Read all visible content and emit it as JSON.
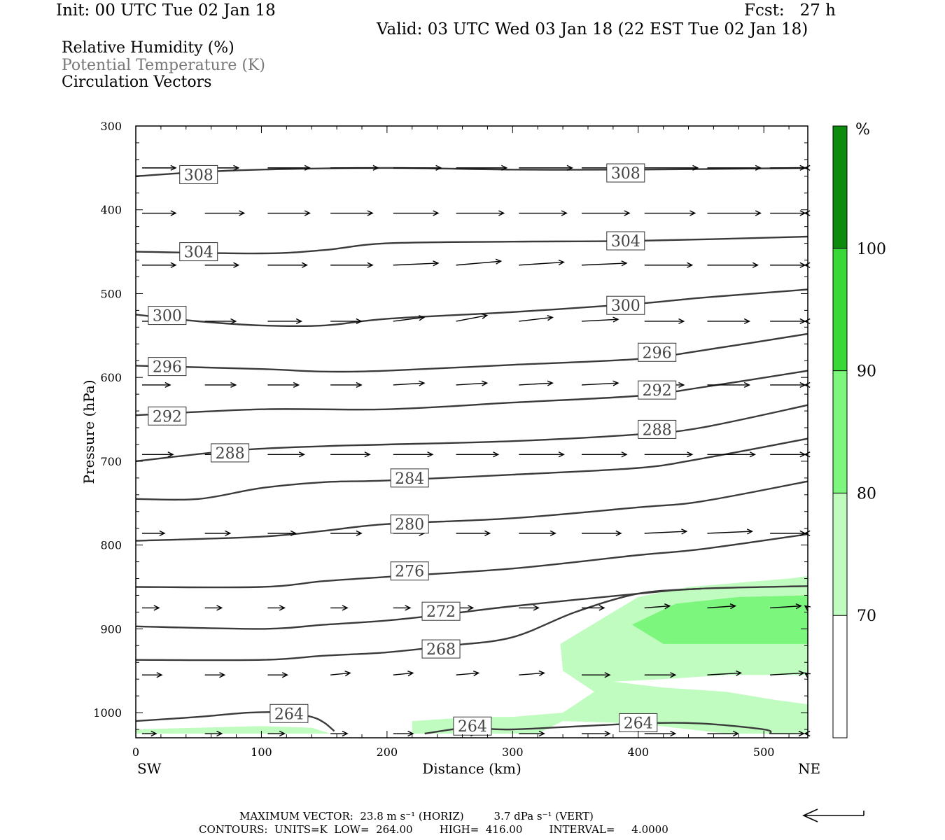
{
  "header": {
    "init": "Init: 00 UTC Tue 02 Jan 18",
    "fcst": "Fcst:   27 h",
    "valid": "Valid: 03 UTC Wed 03 Jan 18 (22 EST Tue 02 Jan 18)"
  },
  "legend": {
    "rh": "Relative Humidity (%)",
    "theta": "Potential Temperature (K)",
    "vectors": "Circulation Vectors"
  },
  "footer": {
    "line1": "MAXIMUM VECTOR:  23.8 m s⁻¹ (HORIZ)         3.7 dPa s⁻¹ (VERT)",
    "line2": "CONTOURS:  UNITS=K  LOW=  264.00        HIGH=  416.00        INTERVAL=     4.0000"
  },
  "colors": {
    "contour": "#3a3a3a",
    "rh70": "#c0fcc0",
    "rh80": "#7cf67c",
    "rh90": "#38d838",
    "rh100": "#0e8a0e",
    "theta_legend": "#777777"
  },
  "chart_data": {
    "type": "contour-cross-section",
    "xlabel": "Distance (km)",
    "ylabel": "Pressure (hPa)",
    "x_left_label": "SW",
    "x_right_label": "NE",
    "xlim": [
      0,
      535
    ],
    "ylim": [
      1030,
      300
    ],
    "x_ticks": [
      0,
      100,
      200,
      300,
      400,
      500
    ],
    "y_ticks": [
      300,
      400,
      500,
      600,
      700,
      800,
      900,
      1000
    ],
    "colorbar": {
      "unit": "%",
      "levels": [
        70,
        80,
        90,
        100
      ],
      "colors": [
        "#ffffff",
        "#c0fcc0",
        "#7cf67c",
        "#38d838",
        "#0e8a0e"
      ]
    },
    "theta_contours": [
      {
        "value": 308,
        "points": [
          [
            0,
            360
          ],
          [
            50,
            355
          ],
          [
            100,
            352
          ],
          [
            200,
            350
          ],
          [
            300,
            352
          ],
          [
            400,
            352
          ],
          [
            535,
            350
          ]
        ],
        "labels": [
          [
            50,
            358
          ],
          [
            390,
            356
          ]
        ]
      },
      {
        "value": 304,
        "points": [
          [
            0,
            450
          ],
          [
            100,
            452
          ],
          [
            150,
            448
          ],
          [
            200,
            440
          ],
          [
            300,
            438
          ],
          [
            400,
            437
          ],
          [
            535,
            432
          ]
        ],
        "labels": [
          [
            50,
            450
          ],
          [
            390,
            437
          ]
        ]
      },
      {
        "value": 300,
        "points": [
          [
            0,
            525
          ],
          [
            50,
            533
          ],
          [
            100,
            538
          ],
          [
            150,
            538
          ],
          [
            200,
            530
          ],
          [
            300,
            522
          ],
          [
            400,
            512
          ],
          [
            450,
            505
          ],
          [
            535,
            495
          ]
        ],
        "labels": [
          [
            25,
            526
          ],
          [
            390,
            514
          ]
        ]
      },
      {
        "value": 296,
        "points": [
          [
            0,
            586
          ],
          [
            100,
            590
          ],
          [
            150,
            593
          ],
          [
            200,
            592
          ],
          [
            300,
            585
          ],
          [
            400,
            578
          ],
          [
            450,
            568
          ],
          [
            535,
            548
          ]
        ],
        "labels": [
          [
            25,
            587
          ],
          [
            415,
            570
          ]
        ]
      },
      {
        "value": 292,
        "points": [
          [
            0,
            645
          ],
          [
            100,
            638
          ],
          [
            200,
            638
          ],
          [
            300,
            630
          ],
          [
            400,
            622
          ],
          [
            450,
            612
          ],
          [
            535,
            592
          ]
        ],
        "labels": [
          [
            25,
            646
          ],
          [
            415,
            615
          ]
        ]
      },
      {
        "value": 288,
        "points": [
          [
            0,
            700
          ],
          [
            80,
            687
          ],
          [
            150,
            682
          ],
          [
            200,
            680
          ],
          [
            300,
            676
          ],
          [
            400,
            668
          ],
          [
            450,
            660
          ],
          [
            535,
            633
          ]
        ],
        "labels": [
          [
            75,
            690
          ],
          [
            415,
            662
          ]
        ]
      },
      {
        "value": 284,
        "points": [
          [
            0,
            745
          ],
          [
            50,
            745
          ],
          [
            100,
            732
          ],
          [
            150,
            725
          ],
          [
            200,
            723
          ],
          [
            300,
            716
          ],
          [
            400,
            708
          ],
          [
            450,
            697
          ],
          [
            535,
            673
          ]
        ],
        "labels": [
          [
            218,
            720
          ],
          null
        ]
      },
      {
        "value": 280,
        "points": [
          [
            0,
            795
          ],
          [
            100,
            790
          ],
          [
            150,
            783
          ],
          [
            200,
            775
          ],
          [
            300,
            768
          ],
          [
            400,
            755
          ],
          [
            450,
            748
          ],
          [
            535,
            724
          ]
        ],
        "labels": [
          [
            218,
            775
          ],
          null
        ]
      },
      {
        "value": 276,
        "points": [
          [
            0,
            850
          ],
          [
            100,
            850
          ],
          [
            150,
            843
          ],
          [
            200,
            838
          ],
          [
            300,
            828
          ],
          [
            400,
            812
          ],
          [
            450,
            805
          ],
          [
            535,
            787
          ]
        ],
        "labels": [
          [
            218,
            831
          ],
          null
        ]
      },
      {
        "value": 272,
        "points": [
          [
            0,
            897
          ],
          [
            100,
            900
          ],
          [
            150,
            895
          ],
          [
            200,
            890
          ],
          [
            250,
            882
          ],
          [
            300,
            873
          ],
          [
            400,
            858
          ],
          [
            450,
            852
          ],
          [
            535,
            849
          ]
        ],
        "labels": [
          [
            243,
            879
          ],
          null
        ]
      },
      {
        "value": 268,
        "points": [
          [
            0,
            937
          ],
          [
            100,
            937
          ],
          [
            150,
            932
          ],
          [
            200,
            928
          ],
          [
            250,
            920
          ],
          [
            300,
            910
          ],
          [
            350,
            880
          ],
          [
            400,
            858
          ],
          [
            450,
            852
          ]
        ],
        "labels": [
          [
            243,
            924
          ],
          null
        ]
      },
      {
        "value": 264,
        "points": [
          [
            0,
            1010
          ],
          [
            50,
            1005
          ],
          [
            90,
            1000
          ],
          [
            120,
            1000
          ],
          [
            140,
            1005
          ],
          [
            150,
            1012
          ],
          [
            158,
            1022
          ]
        ],
        "labels": [
          [
            122,
            1001
          ],
          null
        ]
      },
      {
        "value": 264,
        "points": [
          [
            230,
            1025
          ],
          [
            265,
            1018
          ],
          [
            300,
            1020
          ],
          [
            400,
            1013
          ],
          [
            450,
            1013
          ],
          [
            500,
            1020
          ],
          [
            505,
            1025
          ]
        ],
        "labels": [
          [
            268,
            1016
          ],
          [
            400,
            1012
          ]
        ]
      }
    ],
    "rh_regions": [
      {
        "level": 70,
        "points": [
          [
            338,
            918
          ],
          [
            380,
            880
          ],
          [
            400,
            862
          ],
          [
            440,
            850
          ],
          [
            480,
            845
          ],
          [
            520,
            840
          ],
          [
            535,
            837
          ],
          [
            535,
            955
          ],
          [
            470,
            955
          ],
          [
            420,
            960
          ],
          [
            380,
            963
          ],
          [
            420,
            970
          ],
          [
            470,
            975
          ],
          [
            510,
            985
          ],
          [
            535,
            990
          ],
          [
            535,
            1025
          ],
          [
            470,
            1025
          ],
          [
            400,
            1013
          ],
          [
            340,
            1010
          ],
          [
            320,
            1025
          ],
          [
            220,
            1025
          ],
          [
            220,
            1010
          ],
          [
            270,
            1005
          ],
          [
            300,
            1005
          ],
          [
            340,
            1000
          ],
          [
            365,
            975
          ],
          [
            340,
            950
          ]
        ]
      },
      {
        "level": 70,
        "points": [
          [
            0,
            1020
          ],
          [
            50,
            1018
          ],
          [
            100,
            1016
          ],
          [
            140,
            1018
          ],
          [
            155,
            1025
          ],
          [
            0,
            1025
          ]
        ]
      },
      {
        "level": 80,
        "points": [
          [
            395,
            895
          ],
          [
            430,
            870
          ],
          [
            480,
            862
          ],
          [
            535,
            860
          ],
          [
            535,
            918
          ],
          [
            420,
            918
          ]
        ]
      }
    ],
    "vector_rows": [
      {
        "p": 350,
        "u": [
          0.6,
          0.6,
          0.75,
          0.85,
          0.85,
          0.9,
          0.95,
          0.95,
          0.95,
          0.95,
          1.0,
          1.0
        ],
        "w": [
          0,
          0,
          0,
          0,
          0,
          0,
          0,
          0,
          0,
          0,
          0,
          0
        ]
      },
      {
        "p": 404,
        "u": [
          0.6,
          0.7,
          0.75,
          0.75,
          0.8,
          0.85,
          0.85,
          0.85,
          0.9,
          0.95,
          0.95,
          0.95
        ],
        "w": [
          0,
          0,
          0,
          0,
          0,
          0,
          0,
          0,
          0,
          0,
          0,
          0
        ]
      },
      {
        "p": 466,
        "u": [
          0.6,
          0.6,
          0.7,
          0.75,
          0.8,
          0.8,
          0.8,
          0.8,
          0.85,
          0.9,
          0.9,
          0.9
        ],
        "w": [
          0,
          0,
          0,
          0,
          -0.1,
          -0.2,
          -0.15,
          -0.1,
          0,
          0,
          0,
          0
        ]
      },
      {
        "p": 533,
        "u": [
          0.5,
          0.55,
          0.6,
          0.55,
          0.55,
          0.55,
          0.6,
          0.65,
          0.7,
          0.75,
          0.75,
          0.75
        ],
        "w": [
          0,
          0,
          0,
          0,
          -0.2,
          -0.3,
          -0.2,
          -0.1,
          0,
          0,
          0,
          0
        ]
      },
      {
        "p": 609,
        "u": [
          0.5,
          0.55,
          0.55,
          0.55,
          0.55,
          0.55,
          0.6,
          0.65,
          0.7,
          0.75,
          0.75,
          0.75
        ],
        "w": [
          0,
          0,
          0,
          0,
          -0.1,
          -0.1,
          -0.1,
          -0.1,
          0,
          0,
          0,
          0
        ]
      },
      {
        "p": 692,
        "u": [
          0.55,
          0.6,
          0.65,
          0.7,
          0.7,
          0.75,
          0.8,
          0.8,
          0.85,
          0.85,
          0.85,
          0.85
        ],
        "w": [
          0,
          0,
          0,
          0,
          0,
          0,
          0,
          0,
          0,
          0,
          0,
          0
        ]
      },
      {
        "p": 786,
        "u": [
          0.4,
          0.45,
          0.5,
          0.55,
          0.55,
          0.6,
          0.65,
          0.7,
          0.75,
          0.8,
          0.75,
          0.6
        ],
        "w": [
          0,
          0,
          0,
          0,
          0,
          0,
          0,
          0,
          -0.1,
          -0.1,
          0,
          0
        ]
      },
      {
        "p": 875,
        "u": [
          0.3,
          0.3,
          0.3,
          0.3,
          0.3,
          0.3,
          0.35,
          0.4,
          0.45,
          0.5,
          0.55,
          0.6
        ],
        "w": [
          0,
          0,
          0,
          0,
          0,
          0,
          0,
          0,
          -0.1,
          -0.1,
          -0.1,
          -0.1
        ]
      },
      {
        "p": 955,
        "u": [
          0.35,
          0.35,
          0.35,
          0.35,
          0.35,
          0.4,
          0.45,
          0.5,
          0.55,
          0.6,
          0.6,
          0.6
        ],
        "w": [
          0,
          0,
          0,
          -0.1,
          -0.1,
          -0.1,
          -0.1,
          0,
          0,
          -0.1,
          -0.1,
          -0.1
        ]
      },
      {
        "p": 1025,
        "u": [
          0.25,
          0.3,
          0.3,
          0.3,
          0.35,
          0.35,
          0.45,
          0.5,
          0.55,
          0.55,
          0.6,
          0.6
        ],
        "w": [
          0,
          0,
          0,
          0,
          0,
          0,
          0,
          0,
          0,
          0,
          0,
          0
        ]
      }
    ],
    "vector_x": [
      5,
      55,
      105,
      155,
      205,
      255,
      305,
      355,
      405,
      455,
      505,
      535
    ],
    "reference_vector": "arrow"
  }
}
